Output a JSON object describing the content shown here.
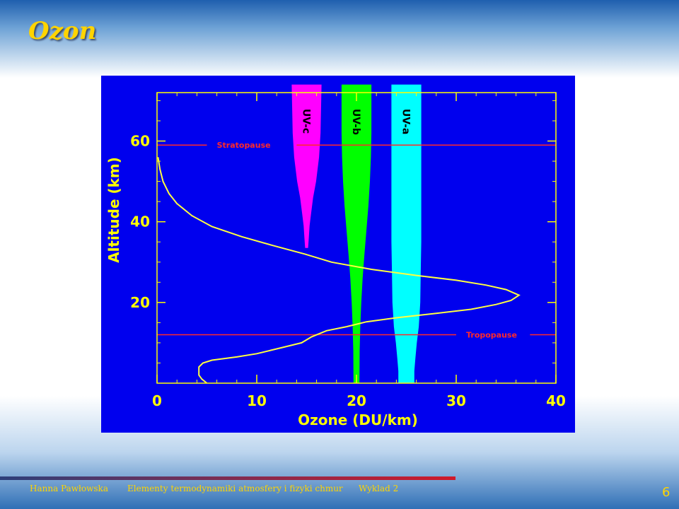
{
  "slide": {
    "title": "Ozon",
    "footer": {
      "author": "Hanna Pawłowska",
      "course": "Elementy termodynamiki atmosfery i fizyki chmur",
      "lecture": "Wyklad 2"
    },
    "page_number": "6"
  },
  "colors": {
    "panel_background": "#0000ee",
    "plot_frame": "#ffff00",
    "ozone_curve": "#ffff40",
    "reference_lines": "#ff2a2a",
    "uv_c": "#ff00ff",
    "uv_b": "#00ff00",
    "uv_a": "#00ffff",
    "axis_text": "#ffff00"
  },
  "chart_data": {
    "type": "line",
    "title": "",
    "xlabel": "Ozone (DU/km)",
    "ylabel": "Altitude (km)",
    "xlim": [
      0,
      40
    ],
    "ylim": [
      0,
      72
    ],
    "x_ticks": [
      0,
      10,
      20,
      30,
      40
    ],
    "y_ticks": [
      20,
      40,
      60
    ],
    "grid": false,
    "series": [
      {
        "name": "",
        "points": [
          [
            5,
            0
          ],
          [
            4.5,
            1
          ],
          [
            4.2,
            2
          ],
          [
            4.2,
            4
          ],
          [
            4.6,
            5
          ],
          [
            5.5,
            5.7
          ],
          [
            8,
            6.5
          ],
          [
            10,
            7.3
          ],
          [
            12,
            8.5
          ],
          [
            14.5,
            10
          ],
          [
            15.5,
            11.5
          ],
          [
            17,
            13
          ],
          [
            19,
            14
          ],
          [
            21,
            15.2
          ],
          [
            24,
            16.2
          ],
          [
            28,
            17.3
          ],
          [
            31.5,
            18.3
          ],
          [
            34,
            19.5
          ],
          [
            35.5,
            20.5
          ],
          [
            36.3,
            21.8
          ],
          [
            35,
            23.2
          ],
          [
            33,
            24.3
          ],
          [
            30,
            25.5
          ],
          [
            26,
            26.7
          ],
          [
            21.5,
            28.2
          ],
          [
            17.5,
            30
          ],
          [
            14.8,
            32
          ],
          [
            11.5,
            34.2
          ],
          [
            8.5,
            36.3
          ],
          [
            5.5,
            38.8
          ],
          [
            3.5,
            41.5
          ],
          [
            2,
            44.5
          ],
          [
            1.2,
            47
          ],
          [
            0.6,
            50
          ],
          [
            0.3,
            53
          ],
          [
            0.1,
            56
          ]
        ]
      }
    ],
    "reference_lines": [
      {
        "label": "Stratopause",
        "y": 59
      },
      {
        "label": "Tropopause",
        "y": 12
      }
    ],
    "bands": [
      {
        "label": "UV-c",
        "center": 15,
        "profile": [
          [
            74,
            1.5
          ],
          [
            62,
            1.4
          ],
          [
            56,
            1.25
          ],
          [
            50,
            0.95
          ],
          [
            46,
            0.65
          ],
          [
            42,
            0.45
          ],
          [
            39,
            0.3
          ],
          [
            36,
            0.22
          ],
          [
            33.5,
            0.15
          ]
        ]
      },
      {
        "label": "UV-b",
        "center": 20,
        "profile": [
          [
            74,
            1.5
          ],
          [
            62,
            1.5
          ],
          [
            56,
            1.45
          ],
          [
            50,
            1.35
          ],
          [
            44,
            1.2
          ],
          [
            38,
            1.0
          ],
          [
            32,
            0.8
          ],
          [
            26,
            0.62
          ],
          [
            20,
            0.48
          ],
          [
            14,
            0.38
          ],
          [
            8,
            0.32
          ],
          [
            0,
            0.3
          ]
        ]
      },
      {
        "label": "UV-a",
        "center": 25,
        "profile": [
          [
            74,
            1.5
          ],
          [
            35,
            1.5
          ],
          [
            28,
            1.45
          ],
          [
            20,
            1.4
          ],
          [
            14,
            1.25
          ],
          [
            10,
            1.05
          ],
          [
            6,
            0.9
          ],
          [
            3,
            0.8
          ],
          [
            0,
            0.8
          ]
        ]
      }
    ]
  }
}
